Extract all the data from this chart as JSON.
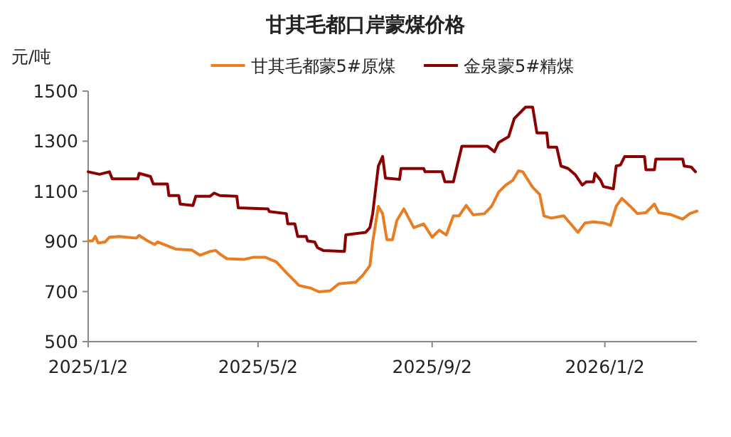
{
  "chart_data": {
    "type": "line",
    "title": "甘其毛都口岸蒙煤价格",
    "ylabel": "元/吨",
    "legend": "top",
    "grid": false,
    "marker": "none",
    "line_style": "solid",
    "ylim": [
      500,
      1500
    ],
    "yticks": [
      500,
      700,
      900,
      1100,
      1300,
      1500
    ],
    "xlim": [
      "2025-01-02",
      "2026-03-08"
    ],
    "xticks": [
      {
        "value": "2025-01-02",
        "label": "2025/1/2"
      },
      {
        "value": "2025-05-02",
        "label": "2025/5/2"
      },
      {
        "value": "2025-09-02",
        "label": "2025/9/2"
      },
      {
        "value": "2026-01-02",
        "label": "2026/1/2"
      }
    ],
    "series": [
      {
        "name": "甘其毛都蒙5#原煤",
        "color": "#e87d22",
        "x": [
          "2025-01-02",
          "2025-01-05",
          "2025-01-07",
          "2025-01-09",
          "2025-01-14",
          "2025-01-17",
          "2025-01-24",
          "2025-02-05",
          "2025-02-07",
          "2025-02-13",
          "2025-02-18",
          "2025-02-20",
          "2025-03-05",
          "2025-03-16",
          "2025-03-22",
          "2025-03-29",
          "2025-04-02",
          "2025-04-05",
          "2025-04-10",
          "2025-04-22",
          "2025-04-29",
          "2025-05-07",
          "2025-05-15",
          "2025-05-22",
          "2025-05-31",
          "2025-06-08",
          "2025-06-14",
          "2025-06-22",
          "2025-06-28",
          "2025-07-10",
          "2025-07-15",
          "2025-07-20",
          "2025-07-22",
          "2025-07-26",
          "2025-07-29",
          "2025-08-01",
          "2025-08-05",
          "2025-08-08",
          "2025-08-13",
          "2025-08-20",
          "2025-08-27",
          "2025-09-02",
          "2025-09-07",
          "2025-09-12",
          "2025-09-17",
          "2025-09-21",
          "2025-09-26",
          "2025-10-01",
          "2025-10-09",
          "2025-10-14",
          "2025-10-19",
          "2025-10-24",
          "2025-10-29",
          "2025-11-02",
          "2025-11-05",
          "2025-11-12",
          "2025-11-17",
          "2025-11-20",
          "2025-11-25",
          "2025-12-04",
          "2025-12-14",
          "2025-12-19",
          "2025-12-25",
          "2026-01-01",
          "2026-01-06",
          "2026-01-10",
          "2026-01-14",
          "2026-01-20",
          "2026-01-25",
          "2026-01-31",
          "2026-02-06",
          "2026-02-09",
          "2026-02-17",
          "2026-02-26",
          "2026-03-03",
          "2026-03-08"
        ],
        "values": [
          902,
          902,
          920,
          894,
          898,
          917,
          920,
          913,
          924,
          902,
          888,
          898,
          869,
          866,
          845,
          860,
          864,
          850,
          831,
          828,
          837,
          837,
          818,
          775,
          724,
          714,
          699,
          703,
          731,
          737,
          765,
          803,
          898,
          1040,
          1011,
          907,
          907,
          983,
          1030,
          955,
          970,
          917,
          945,
          926,
          1002,
          1002,
          1044,
          1006,
          1011,
          1040,
          1097,
          1125,
          1144,
          1182,
          1178,
          1116,
          1087,
          1002,
          993,
          1002,
          936,
          974,
          978,
          974,
          964,
          1040,
          1072,
          1040,
          1011,
          1015,
          1049,
          1015,
          1008,
          989,
          1011,
          1021
        ]
      },
      {
        "name": "金泉蒙5#精煤",
        "color": "#8b0000",
        "x": [
          "2025-01-02",
          "2025-01-10",
          "2025-01-17",
          "2025-01-19",
          "2025-02-06",
          "2025-02-07",
          "2025-02-15",
          "2025-02-17",
          "2025-02-27",
          "2025-02-28",
          "2025-03-07",
          "2025-03-08",
          "2025-03-17",
          "2025-03-19",
          "2025-03-29",
          "2025-04-01",
          "2025-04-05",
          "2025-04-17",
          "2025-04-18",
          "2025-05-09",
          "2025-05-10",
          "2025-05-22",
          "2025-05-23",
          "2025-05-28",
          "2025-05-30",
          "2025-06-05",
          "2025-06-06",
          "2025-06-11",
          "2025-06-13",
          "2025-06-17",
          "2025-07-02",
          "2025-07-03",
          "2025-07-17",
          "2025-07-20",
          "2025-07-22",
          "2025-07-26",
          "2025-07-29",
          "2025-07-31",
          "2025-08-10",
          "2025-08-11",
          "2025-08-27",
          "2025-08-28",
          "2025-09-09",
          "2025-09-11",
          "2025-09-17",
          "2025-09-20",
          "2025-09-23",
          "2025-10-11",
          "2025-10-16",
          "2025-10-19",
          "2025-10-26",
          "2025-10-30",
          "2025-11-07",
          "2025-11-12",
          "2025-11-15",
          "2025-11-22",
          "2025-11-23",
          "2025-11-29",
          "2025-12-02",
          "2025-12-07",
          "2025-12-12",
          "2025-12-17",
          "2025-12-20",
          "2025-12-25",
          "2025-12-26",
          "2025-12-30",
          "2026-01-01",
          "2026-01-08",
          "2026-01-10",
          "2026-01-13",
          "2026-01-16",
          "2026-01-30",
          "2026-01-31",
          "2026-02-06",
          "2026-02-07",
          "2026-02-26",
          "2026-02-27",
          "2026-03-04",
          "2026-03-07"
        ],
        "values": [
          1178,
          1168,
          1178,
          1150,
          1150,
          1172,
          1159,
          1129,
          1129,
          1083,
          1083,
          1049,
          1043,
          1080,
          1080,
          1093,
          1083,
          1080,
          1034,
          1030,
          1019,
          1011,
          970,
          970,
          920,
          920,
          902,
          898,
          875,
          864,
          860,
          926,
          936,
          955,
          1011,
          1201,
          1239,
          1153,
          1148,
          1191,
          1191,
          1178,
          1178,
          1138,
          1138,
          1210,
          1280,
          1280,
          1258,
          1295,
          1318,
          1390,
          1436,
          1436,
          1333,
          1333,
          1276,
          1276,
          1201,
          1191,
          1167,
          1125,
          1138,
          1138,
          1172,
          1144,
          1119,
          1110,
          1201,
          1205,
          1239,
          1239,
          1186,
          1186,
          1229,
          1229,
          1201,
          1197,
          1178
        ]
      }
    ]
  }
}
